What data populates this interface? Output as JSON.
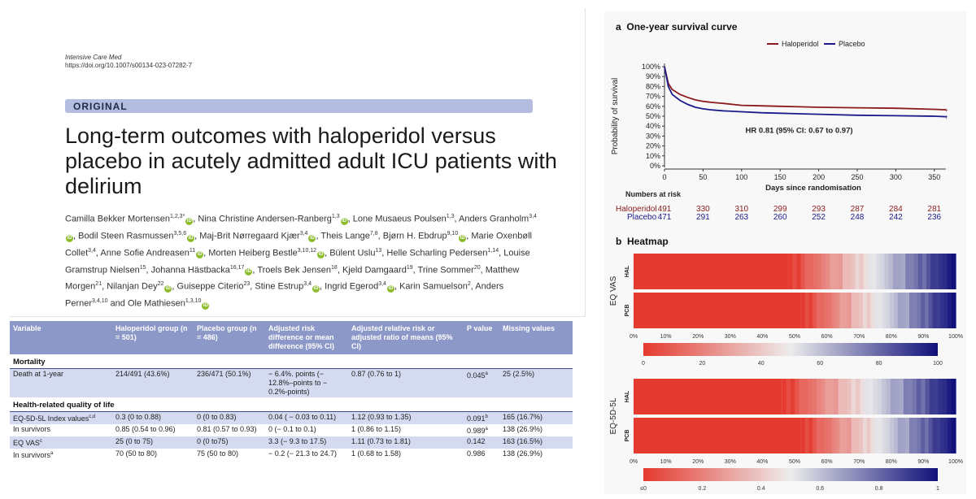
{
  "paper": {
    "journal": "Intensive Care Med",
    "doi": "https://doi.org/10.1007/s00134-023-07282-7",
    "article_type": "ORIGINAL",
    "title": "Long-term outcomes with haloperidol versus placebo in acutely admitted adult ICU patients with delirium",
    "authors": [
      {
        "name": "Camilla Bekker Mortensen",
        "aff": "1,2,3*",
        "orcid": true
      },
      {
        "name": "Nina Christine Andersen-Ranberg",
        "aff": "1,3",
        "orcid": true
      },
      {
        "name": "Lone Musaeus Poulsen",
        "aff": "1,3",
        "orcid": false
      },
      {
        "name": "Anders Granholm",
        "aff": "3,4",
        "orcid": true
      },
      {
        "name": "Bodil Steen Rasmussen",
        "aff": "3,5,6",
        "orcid": true
      },
      {
        "name": "Maj-Brit Nørregaard Kjær",
        "aff": "3,4",
        "orcid": true
      },
      {
        "name": "Theis Lange",
        "aff": "7,8",
        "orcid": false
      },
      {
        "name": "Bjørn H. Ebdrup",
        "aff": "9,10",
        "orcid": true
      },
      {
        "name": "Marie Oxenbøll Collet",
        "aff": "3,4",
        "orcid": false
      },
      {
        "name": "Anne Sofie Andreasen",
        "aff": "11",
        "orcid": true
      },
      {
        "name": "Morten Heiberg Bestle",
        "aff": "3,10,12",
        "orcid": true
      },
      {
        "name": "Bülent Uslu",
        "aff": "13",
        "orcid": false
      },
      {
        "name": "Helle Scharling Pedersen",
        "aff": "1,14",
        "orcid": false
      },
      {
        "name": "Louise Gramstrup Nielsen",
        "aff": "15",
        "orcid": false
      },
      {
        "name": "Johanna Hästbacka",
        "aff": "16,17",
        "orcid": true
      },
      {
        "name": "Troels Bek Jensen",
        "aff": "18",
        "orcid": false
      },
      {
        "name": "Kjeld Damgaard",
        "aff": "19",
        "orcid": false
      },
      {
        "name": "Trine Sommer",
        "aff": "20",
        "orcid": false
      },
      {
        "name": "Matthew Morgen",
        "aff": "21",
        "orcid": false
      },
      {
        "name": "Nilanjan Dey",
        "aff": "22",
        "orcid": true
      },
      {
        "name": "Guiseppe Citerio",
        "aff": "23",
        "orcid": false
      },
      {
        "name": "Stine Estrup",
        "aff": "3,4",
        "orcid": true
      },
      {
        "name": "Ingrid Egerod",
        "aff": "3,4",
        "orcid": true
      },
      {
        "name": "Karin Samuelson",
        "aff": "2",
        "orcid": false
      },
      {
        "name": "Anders Perner",
        "aff": "3,4,10",
        "orcid": false
      },
      {
        "name": "Ole Mathiesen",
        "aff": "1,3,10",
        "orcid": true
      }
    ],
    "author_separator": ", ",
    "author_last_join": "and ",
    "orcid_glyph": "iD"
  },
  "table": {
    "headers": [
      "Variable",
      "Haloperidol group (n = 501)",
      "Placebo group (n = 486)",
      "Adjusted risk difference or mean difference (95% CI)",
      "Adjusted relative risk or adjusted ratio of means (95% CI)",
      "P value",
      "Missing values"
    ],
    "sections": [
      {
        "title": "Mortality",
        "rows": [
          {
            "cells": [
              "Death at 1-year",
              "214/491 (43.6%)",
              "236/471 (50.1%)",
              "− 6.4%. points (− 12.8%–points to − 0.2%-points)",
              "0.87 (0.76 to 1)",
              "0.045",
              "25 (2.5%)"
            ],
            "sups": [
              "",
              "",
              "",
              "",
              "",
              "a",
              ""
            ]
          }
        ]
      },
      {
        "title": "Health-related quality of life",
        "rows": [
          {
            "cells": [
              "EQ-5D-5L Index values",
              "0.3 (0 to 0.88)",
              "0 (0 to 0.83)",
              "0.04 ( − 0.03 to 0.11)",
              "1.12 (0.93 to 1.35)",
              "0.091",
              "165 (16.7%)"
            ],
            "sups": [
              "c,d",
              "",
              "",
              "",
              "",
              "b",
              ""
            ]
          },
          {
            "cells": [
              "In survivors",
              "0.85 (0.54 to 0.96)",
              "0.81 (0.57 to 0.93)",
              "0 (− 0.1 to 0.1)",
              "1 (0.86 to 1.15)",
              "0.989",
              "138 (26.9%)"
            ],
            "sups": [
              "",
              "",
              "",
              "",
              "",
              "a",
              ""
            ]
          },
          {
            "cells": [
              "EQ VAS",
              "25 (0 to 75)",
              "0 (0 to75)",
              "3.3 (− 9.3 to 17.5)",
              "1.11 (0.73 to 1.81)",
              "0.142",
              "163 (16.5%)"
            ],
            "sups": [
              "c",
              "",
              "",
              "",
              "",
              "",
              ""
            ]
          },
          {
            "cells": [
              "In survivors",
              "70 (50 to 80)",
              "75 (50 to 80)",
              "− 0.2 (− 21.3 to 24.7)",
              "1 (0.68 to 1.58)",
              "0.986",
              "138 (26.9%)"
            ],
            "sups": [
              "a",
              "",
              "",
              "",
              "",
              "",
              ""
            ]
          }
        ]
      }
    ]
  },
  "figure": {
    "panel_a_label": "a",
    "panel_b_label": "b",
    "chart_data": [
      {
        "type": "line",
        "title": "One-year survival curve",
        "xlabel": "Days since randomisation",
        "ylabel": "Probability of survival",
        "xlim": [
          0,
          365
        ],
        "ylim": [
          0,
          1
        ],
        "x_ticks": [
          0,
          50,
          100,
          150,
          200,
          250,
          300,
          350
        ],
        "y_ticks": [
          "0%",
          "10%",
          "20%",
          "30%",
          "40%",
          "50%",
          "60%",
          "70%",
          "80%",
          "90%",
          "100%"
        ],
        "legend_placement": "top",
        "annotation": "HR 0.81 (95%  CI: 0.67 to 0.97)",
        "series": [
          {
            "name": "Haloperidol",
            "color": "#8b1a1a",
            "x": [
              0,
              5,
              10,
              20,
              30,
              40,
              50,
              60,
              75,
              100,
              125,
              150,
              175,
              200,
              250,
              300,
              350,
              365
            ],
            "y": [
              1.0,
              0.83,
              0.77,
              0.72,
              0.69,
              0.665,
              0.65,
              0.64,
              0.63,
              0.61,
              0.605,
              0.6,
              0.595,
              0.59,
              0.585,
              0.58,
              0.57,
              0.565
            ]
          },
          {
            "name": "Placebo",
            "color": "#1a1a8b",
            "x": [
              0,
              5,
              10,
              20,
              30,
              40,
              50,
              60,
              75,
              100,
              125,
              150,
              175,
              200,
              250,
              300,
              350,
              365
            ],
            "y": [
              1.0,
              0.8,
              0.72,
              0.66,
              0.62,
              0.59,
              0.575,
              0.565,
              0.555,
              0.545,
              0.535,
              0.53,
              0.525,
              0.52,
              0.51,
              0.505,
              0.5,
              0.495
            ]
          }
        ],
        "numbers_at_risk": {
          "title": "Numbers at risk",
          "groups": [
            {
              "name": "Haloperidol",
              "color": "#8b1a1a",
              "values": [
                491,
                330,
                310,
                299,
                293,
                287,
                284,
                281
              ]
            },
            {
              "name": "Placebo",
              "color": "#1a1a8b",
              "values": [
                471,
                291,
                263,
                260,
                252,
                248,
                242,
                236
              ]
            }
          ]
        }
      },
      {
        "type": "heatmap",
        "title": "Heatmap",
        "sections": [
          {
            "ylabel": "EQ VAS",
            "rows": [
              "HAL",
              "PCB"
            ],
            "red_fraction": [
              0.48,
              0.52
            ],
            "x_ticks": [
              "0%",
              "10%",
              "20%",
              "30%",
              "40%",
              "50%",
              "60%",
              "70%",
              "80%",
              "90%",
              "100%"
            ],
            "colorbar_ticks": [
              "0",
              "20",
              "40",
              "60",
              "80",
              "100"
            ]
          },
          {
            "ylabel": "EQ-5D-5L",
            "rows": [
              "HAL",
              "PCB"
            ],
            "red_fraction": [
              0.46,
              0.52
            ],
            "x_ticks": [
              "0%",
              "10%",
              "20%",
              "30%",
              "40%",
              "50%",
              "60%",
              "70%",
              "80%",
              "90%",
              "100%"
            ],
            "colorbar_ticks": [
              "≤0",
              "0.2",
              "0.4",
              "0.6",
              "0.8",
              "1"
            ]
          }
        ],
        "colors": {
          "low": "#e53a2f",
          "mid": "#ececec",
          "high": "#10107a"
        }
      }
    ]
  }
}
